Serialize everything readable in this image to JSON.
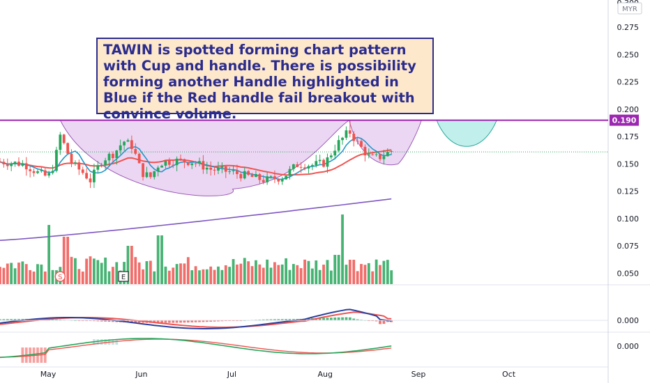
{
  "chart_data": {
    "type": "candlestick",
    "currency_label": "MYR",
    "price_axis": {
      "ylim": [
        0.04,
        0.3
      ],
      "ticks": [
        "0.275",
        "0.250",
        "0.225",
        "0.200",
        "0.175",
        "0.150",
        "0.125",
        "0.100",
        "0.075",
        "0.050"
      ],
      "top_cut_label": "0.300"
    },
    "resistance": {
      "value": 0.19,
      "label": "0.190",
      "color": "#9c27b0"
    },
    "current_price_line": 0.161,
    "macd_axis": {
      "tick": "0.000"
    },
    "osc_axis": {
      "tick": "0.000"
    },
    "x_axis": {
      "labels": [
        {
          "text": "May",
          "day": 0
        },
        {
          "text": "Jun",
          "day": 31
        },
        {
          "text": "Jul",
          "day": 61
        },
        {
          "text": "Aug",
          "day": 92
        },
        {
          "text": "Sep",
          "day": 123
        },
        {
          "text": "Oct",
          "day": 153
        }
      ],
      "xlim": [
        -16,
        186
      ]
    },
    "markers": [
      {
        "text": "S",
        "day": 4
      },
      {
        "text": "E",
        "day": 25
      }
    ],
    "annotation": "TAWIN is spotted forming chart pattern with Cup and handle. There is possibility forming another Handle highlighted in Blue if the Red handle fail breakout with convince volume.",
    "long_ma_range": [
      0.08,
      0.118
    ],
    "colors": {
      "up": "#26a65b",
      "down": "#ef5350",
      "ma_fast": "#2196c8",
      "ma_slow": "#ef5350",
      "ma_long": "#7e57c2",
      "cup_fill": "#e2c6ee",
      "handle2_fill": "#b2ebe7"
    }
  },
  "annotation_text": "TAWIN is spotted forming chart pattern with Cup and handle. There is possibility forming another Handle highlighted in Blue if the Red handle fail breakout with convince volume."
}
